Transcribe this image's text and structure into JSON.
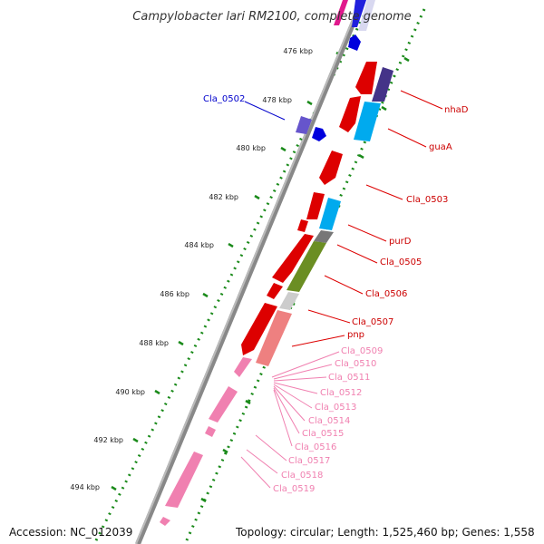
{
  "title": "Campylobacter lari RM2100, complete genome",
  "footer": {
    "accession": "Accession: NC_012039",
    "topology": "Topology: circular; Length: 1,525,460 bp; Genes: 1,558"
  },
  "ticks": [
    "476 kbp",
    "478 kbp",
    "480 kbp",
    "482 kbp",
    "484 kbp",
    "486 kbp",
    "488 kbp",
    "490 kbp",
    "492 kbp",
    "494 kbp"
  ],
  "labels_right": [
    {
      "text": "nhaD",
      "color": "#cc0000"
    },
    {
      "text": "guaA",
      "color": "#cc0000"
    },
    {
      "text": "Cla_0503",
      "color": "#cc0000"
    },
    {
      "text": "purD",
      "color": "#cc0000"
    },
    {
      "text": "Cla_0505",
      "color": "#cc0000"
    },
    {
      "text": "Cla_0506",
      "color": "#cc0000"
    },
    {
      "text": "Cla_0507",
      "color": "#cc0000"
    },
    {
      "text": "pnp",
      "color": "#cc0000"
    },
    {
      "text": "Cla_0509",
      "color": "#f080b0"
    },
    {
      "text": "Cla_0510",
      "color": "#f080b0"
    },
    {
      "text": "Cla_0511",
      "color": "#f080b0"
    },
    {
      "text": "Cla_0512",
      "color": "#f080b0"
    },
    {
      "text": "Cla_0513",
      "color": "#f080b0"
    },
    {
      "text": "Cla_0514",
      "color": "#f080b0"
    },
    {
      "text": "Cla_0515",
      "color": "#f080b0"
    },
    {
      "text": "Cla_0516",
      "color": "#f080b0"
    },
    {
      "text": "Cla_0517",
      "color": "#f080b0"
    },
    {
      "text": "Cla_0518",
      "color": "#f080b0"
    },
    {
      "text": "Cla_0519",
      "color": "#f080b0"
    }
  ],
  "label_left": {
    "text": "Cla_0502",
    "color": "#0000cc"
  }
}
